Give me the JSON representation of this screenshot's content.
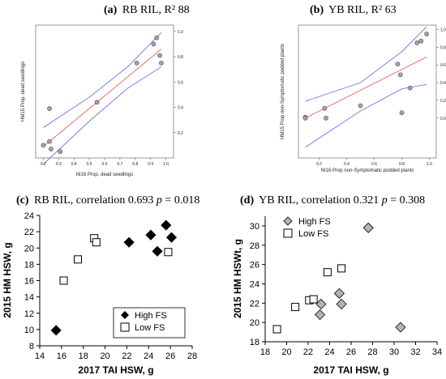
{
  "chart_data": [
    {
      "type": "scatter",
      "panel": "a",
      "title_prefix": "(a)",
      "title": "RB RIL, R² 88",
      "xlabel": "NI16 Prop. dead seedlings",
      "ylabel": "HM15 Prop. dead seedlings",
      "xlim": [
        0.15,
        1.05
      ],
      "ylim": [
        0.0,
        1.05
      ],
      "xticks": [
        "0.2",
        "0.3",
        "0.4",
        "0.5",
        "0.6",
        "0.7",
        "0.8",
        "0.9",
        "1.0"
      ],
      "yticks": [
        "0.2",
        "0.4",
        "0.6",
        "0.8",
        "1.0"
      ],
      "x": [
        0.2,
        0.24,
        0.24,
        0.25,
        0.31,
        0.55,
        0.81,
        0.92,
        0.94,
        0.96,
        0.97
      ],
      "y": [
        0.1,
        0.39,
        0.13,
        0.07,
        0.05,
        0.44,
        0.75,
        0.9,
        0.95,
        0.81,
        0.75
      ],
      "fit_line": {
        "x": [
          0.2,
          0.97
        ],
        "y": [
          0.09,
          0.86
        ]
      },
      "ci_upper": {
        "x": [
          0.2,
          0.5,
          0.75,
          0.97
        ],
        "y": [
          0.24,
          0.48,
          0.72,
          0.99
        ]
      },
      "ci_lower": {
        "x": [
          0.2,
          0.5,
          0.75,
          0.97
        ],
        "y": [
          -0.05,
          0.29,
          0.55,
          0.72
        ]
      },
      "point_color": "#a3a3a3",
      "fit_color": "#e05050",
      "ci_color": "#6060e8"
    },
    {
      "type": "scatter",
      "panel": "b",
      "title_prefix": "(b)",
      "title": "YB RIL, R² 63",
      "xlabel": "NI16 Prop non-Symptomatic podded plants",
      "ylabel": "HM15 Prop non-Symptomatic podded plants",
      "xlim": [
        0.05,
        1.05
      ],
      "ylim": [
        -0.45,
        1.05
      ],
      "xticks": [
        "0.2",
        "0.4",
        "0.6",
        "0.8",
        "1.0"
      ],
      "yticks": [
        "0.0",
        "0.2",
        "0.4",
        "0.6",
        "0.8",
        "1.0"
      ],
      "x": [
        0.1,
        0.1,
        0.24,
        0.25,
        0.5,
        0.77,
        0.79,
        0.8,
        0.86,
        0.91,
        0.94,
        0.98
      ],
      "y": [
        0.01,
        0.0,
        0.11,
        0.0,
        0.14,
        0.61,
        0.49,
        0.06,
        0.34,
        0.85,
        0.87,
        0.95
      ],
      "fit_line": {
        "x": [
          0.1,
          0.98
        ],
        "y": [
          0.0,
          0.69
        ]
      },
      "ci_upper": {
        "x": [
          0.1,
          0.5,
          0.8,
          0.98
        ],
        "y": [
          0.19,
          0.4,
          0.75,
          1.03
        ]
      },
      "ci_lower": {
        "x": [
          0.1,
          0.5,
          0.8,
          0.98
        ],
        "y": [
          -0.33,
          0.08,
          0.33,
          0.38
        ]
      },
      "point_color": "#a3a3a3",
      "fit_color": "#e05050",
      "ci_color": "#6060e8"
    },
    {
      "type": "scatter",
      "panel": "c",
      "title_prefix": "(c)",
      "title": "RB RIL, correlation 0.693 ",
      "p_label": "p",
      "p_value": " = 0.018",
      "xlabel": "2017 TAI HSW, g",
      "ylabel": "2015 HM HSW, g",
      "xlim": [
        14,
        28
      ],
      "ylim": [
        8,
        24
      ],
      "xticks": [
        "14",
        "16",
        "18",
        "20",
        "22",
        "24",
        "26",
        "28"
      ],
      "yticks": [
        "8",
        "10",
        "12",
        "14",
        "16",
        "18",
        "20",
        "22",
        "24"
      ],
      "series": [
        {
          "name": "High FS",
          "marker": "diamond-filled",
          "x": [
            15.5,
            22.2,
            24.2,
            24.8,
            25.6,
            26.1
          ],
          "y": [
            9.9,
            20.7,
            21.6,
            19.6,
            22.8,
            21.3
          ]
        },
        {
          "name": "Low FS",
          "marker": "square-open",
          "x": [
            16.2,
            17.5,
            19.0,
            19.2,
            25.8
          ],
          "y": [
            16.0,
            18.6,
            21.2,
            20.7,
            19.5
          ]
        }
      ],
      "legend_position": "bottom-right"
    },
    {
      "type": "scatter",
      "panel": "d",
      "title_prefix": "(d)",
      "title": "YB RIL, correlation 0.321 ",
      "p_label": "p",
      "p_value": " = 0.308",
      "xlabel": "2017 TAI HSW, g",
      "ylabel": "2015 HM HSWt, g",
      "xlim": [
        18,
        34
      ],
      "ylim": [
        18,
        31
      ],
      "xticks": [
        "18",
        "20",
        "22",
        "24",
        "26",
        "28",
        "30",
        "32",
        "34"
      ],
      "yticks": [
        "18",
        "20",
        "22",
        "24",
        "26",
        "28",
        "30"
      ],
      "series": [
        {
          "name": "High FS",
          "marker": "diamond-gray",
          "x": [
            23.2,
            24.9,
            25.1,
            23.1,
            27.6,
            30.6
          ],
          "y": [
            21.9,
            23.0,
            21.9,
            20.8,
            29.8,
            19.5
          ]
        },
        {
          "name": "Low FS",
          "marker": "square-open",
          "x": [
            19.1,
            20.8,
            22.1,
            22.5,
            23.8,
            25.1
          ],
          "y": [
            19.3,
            21.6,
            22.3,
            22.4,
            25.2,
            25.6
          ]
        }
      ],
      "legend_position": "top-left"
    }
  ],
  "colors": {
    "high_fs_gray": "#b3b3b3",
    "black": "#000000"
  }
}
